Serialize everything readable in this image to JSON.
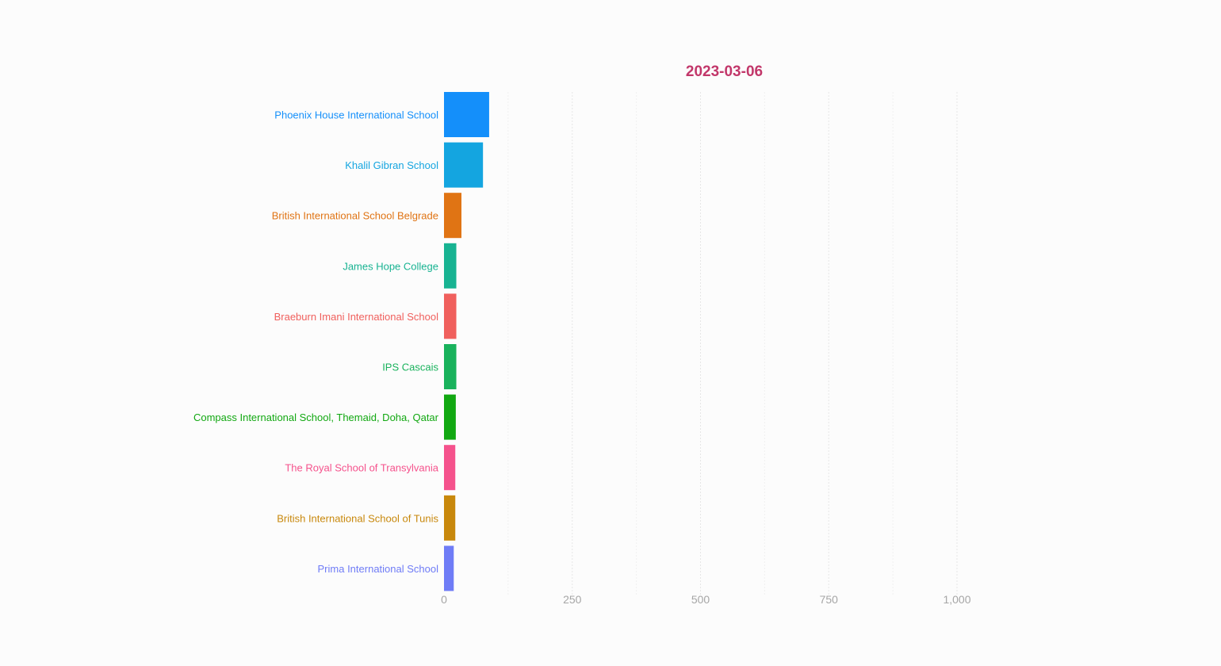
{
  "chart_data": {
    "type": "bar",
    "orientation": "horizontal",
    "date": "2023-03-06",
    "title_color": "#c2376a",
    "categories": [
      "Phoenix House International School",
      "Khalil Gibran School",
      "British International School Belgrade",
      "James Hope College",
      "Braeburn Imani International School",
      "IPS Cascais",
      "Compass International School, Themaid, Doha, Qatar",
      "The Royal School of Transylvania",
      "British International School of Tunis",
      "Prima International School"
    ],
    "values": [
      88,
      76,
      34,
      24,
      24,
      24,
      23,
      22,
      22,
      19
    ],
    "colors": [
      "#148ffa",
      "#14a5e0",
      "#e07414",
      "#18b392",
      "#f0605d",
      "#19b25c",
      "#12a812",
      "#f5528c",
      "#c8880c",
      "#6f7cf6"
    ],
    "x_ticks": [
      0,
      250,
      500,
      750,
      1000
    ],
    "x_tick_labels": [
      "0",
      "250",
      "500",
      "750",
      "1,000"
    ],
    "xlim": [
      0,
      1000
    ],
    "grid": true
  }
}
